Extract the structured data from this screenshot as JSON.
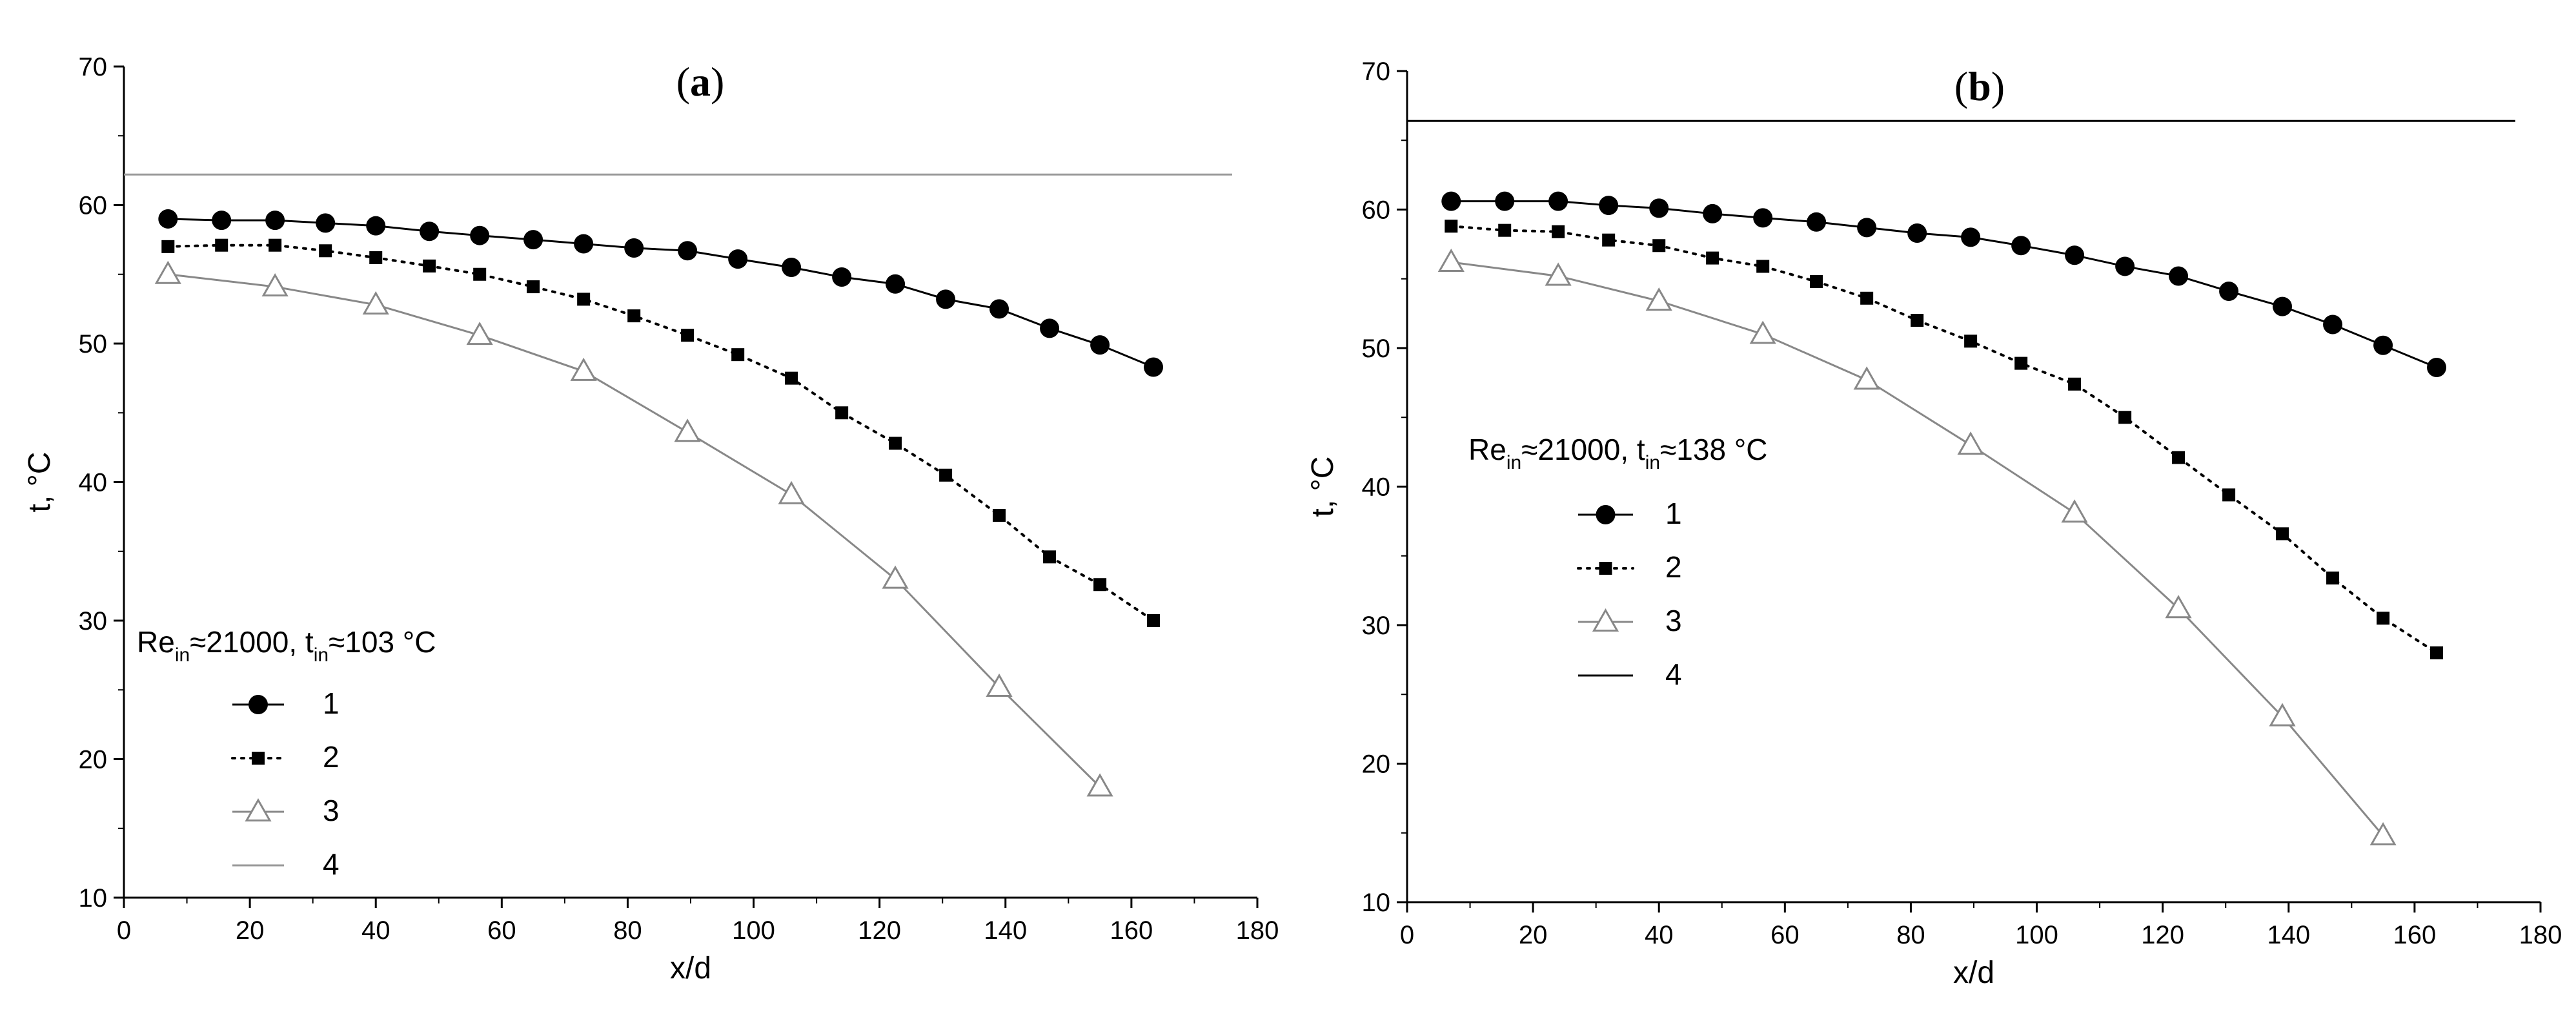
{
  "chart_data": [
    {
      "type": "line",
      "panel": "a",
      "title": "a",
      "xlabel": "x/d",
      "ylabel": "t, °C",
      "xlim": [
        0,
        180
      ],
      "ylim": [
        10,
        70
      ],
      "x_ticks": [
        "0",
        "20",
        "40",
        "60",
        "80",
        "100",
        "120",
        "140",
        "160",
        "180"
      ],
      "y_ticks": [
        "10",
        "20",
        "30",
        "40",
        "50",
        "60",
        "70"
      ],
      "legend": {
        "title_main": "Re",
        "title_sub": "in",
        "title_mid": "≈21000, t",
        "title_sub2": "in",
        "title_end": "≈103 °C",
        "placement": "lower-left"
      },
      "series": [
        {
          "name": "1",
          "marker": "circle",
          "line": "solid",
          "x": [
            7,
            15.5,
            24,
            32,
            40,
            48.5,
            56.5,
            65,
            73,
            81,
            89.5,
            97.5,
            106,
            114,
            122.5,
            130.5,
            139,
            147,
            155,
            163.5
          ],
          "y": [
            59,
            58.9,
            58.9,
            58.7,
            58.5,
            58.1,
            57.8,
            57.5,
            57.2,
            56.9,
            56.7,
            56.1,
            55.5,
            54.8,
            54.3,
            53.2,
            52.5,
            51.1,
            49.9,
            48.3
          ]
        },
        {
          "name": "2",
          "marker": "square",
          "line": "dotted",
          "x": [
            7,
            15.5,
            24,
            32,
            40,
            48.5,
            56.5,
            65,
            73,
            81,
            89.5,
            97.5,
            106,
            114,
            122.5,
            130.5,
            139,
            147,
            155,
            163.5
          ],
          "y": [
            57,
            57.1,
            57.1,
            56.7,
            56.2,
            55.6,
            55,
            54.1,
            53.2,
            52,
            50.6,
            49.2,
            47.5,
            45,
            42.8,
            40.5,
            37.6,
            34.6,
            32.6,
            30
          ]
        },
        {
          "name": "3",
          "marker": "triangle",
          "line": "solid-gray",
          "x": [
            7,
            24,
            40,
            56.5,
            73,
            89.5,
            106,
            122.5,
            139,
            155
          ],
          "y": [
            55,
            54.1,
            52.8,
            50.6,
            48,
            43.6,
            39.1,
            33,
            25.2,
            18
          ]
        },
        {
          "name": "4",
          "marker": "none",
          "line": "solid-gray",
          "x": [
            0,
            176
          ],
          "y": [
            62.2,
            62.2
          ]
        }
      ]
    },
    {
      "type": "line",
      "panel": "b",
      "title": "b",
      "xlabel": "x/d",
      "ylabel": "t, °C",
      "xlim": [
        0,
        180
      ],
      "ylim": [
        10,
        70
      ],
      "x_ticks": [
        "0",
        "20",
        "40",
        "60",
        "80",
        "100",
        "120",
        "140",
        "160",
        "180"
      ],
      "y_ticks": [
        "10",
        "20",
        "30",
        "40",
        "50",
        "60",
        "70"
      ],
      "legend": {
        "title_main": "Re",
        "title_sub": "in",
        "title_mid": "≈21000, t",
        "title_sub2": "in",
        "title_end": "≈138 °C",
        "placement": "middle-left"
      },
      "series": [
        {
          "name": "1",
          "marker": "circle",
          "line": "solid",
          "x": [
            7,
            15.5,
            24,
            32,
            40,
            48.5,
            56.5,
            65,
            73,
            81,
            89.5,
            97.5,
            106,
            114,
            122.5,
            130.5,
            139,
            147,
            155,
            163.5
          ],
          "y": [
            60.6,
            60.6,
            60.6,
            60.3,
            60.1,
            59.7,
            59.4,
            59.1,
            58.7,
            58.3,
            58,
            57.4,
            56.7,
            55.9,
            55.2,
            54.1,
            53,
            51.7,
            50.2,
            48.6
          ]
        },
        {
          "name": "2",
          "marker": "square",
          "line": "dotted",
          "x": [
            7,
            15.5,
            24,
            32,
            40,
            48.5,
            56.5,
            65,
            73,
            81,
            89.5,
            97.5,
            106,
            114,
            122.5,
            130.5,
            139,
            147,
            155,
            163.5
          ],
          "y": [
            58.8,
            58.5,
            58.4,
            57.8,
            57.4,
            56.5,
            55.9,
            54.8,
            53.6,
            52,
            50.5,
            48.9,
            47.4,
            45,
            42.1,
            39.4,
            36.6,
            33.4,
            30.5,
            28
          ]
        },
        {
          "name": "3",
          "marker": "triangle",
          "line": "solid-gray",
          "x": [
            7,
            24,
            40,
            56.5,
            73,
            89.5,
            106,
            122.5,
            139,
            155
          ],
          "y": [
            56.2,
            55.2,
            53.4,
            51,
            47.7,
            43,
            38.1,
            31.2,
            23.4,
            14.8
          ]
        },
        {
          "name": "4",
          "marker": "none",
          "line": "solid",
          "x": [
            0,
            176
          ],
          "y": [
            66.4,
            66.4
          ]
        }
      ]
    }
  ],
  "colors": {
    "axis": "#000000",
    "series1": "#000000",
    "series2": "#000000",
    "series3": "#888888",
    "line4_a": "#999999",
    "line4_b": "#000000"
  }
}
